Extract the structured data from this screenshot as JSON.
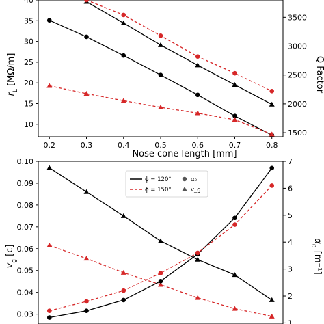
{
  "chart_data": [
    {
      "type": "line",
      "title": "",
      "xlabel": "Nose cone length [mm]",
      "ylabel": "r_L [MΩ/m]",
      "y2label": "Q Factor",
      "x": [
        0.2,
        0.3,
        0.4,
        0.5,
        0.6,
        0.7,
        0.8
      ],
      "xticks": [
        "0.2",
        "0.3",
        "0.4",
        "0.5",
        "0.6",
        "0.7",
        "0.8"
      ],
      "xlim": [
        0.17,
        0.83
      ],
      "ylim": [
        7,
        40
      ],
      "yticks": [
        "10",
        "15",
        "20",
        "25",
        "30",
        "35",
        "40"
      ],
      "y2lim": [
        1430,
        3800
      ],
      "y2ticks": [
        "1500",
        "2000",
        "2500",
        "3000",
        "3500"
      ],
      "series": [
        {
          "axis": "left",
          "color": "#000000",
          "style": "solid",
          "marker": "circle",
          "x": [
            0.2,
            0.3,
            0.4,
            0.5,
            0.6,
            0.7,
            0.8
          ],
          "values": [
            35.1,
            31.1,
            26.6,
            21.9,
            17.1,
            12.0,
            7.4
          ]
        },
        {
          "axis": "left",
          "color": "#d62728",
          "style": "dashed",
          "marker": "triangle",
          "x": [
            0.2,
            0.3,
            0.4,
            0.5,
            0.6,
            0.7,
            0.8
          ],
          "values": [
            19.3,
            17.4,
            15.7,
            14.1,
            12.7,
            11.1,
            7.6
          ]
        },
        {
          "axis": "right",
          "color": "#000000",
          "style": "solid",
          "marker": "triangle",
          "x": [
            0.3,
            0.4,
            0.5,
            0.6,
            0.7,
            0.8
          ],
          "values": [
            3770,
            3400,
            3020,
            2670,
            2330,
            1990
          ]
        },
        {
          "axis": "right",
          "color": "#d62728",
          "style": "dashed",
          "marker": "circle",
          "x": [
            0.3,
            0.4,
            0.5,
            0.6,
            0.7,
            0.8
          ],
          "values": [
            3800,
            3540,
            3180,
            2820,
            2530,
            2220
          ]
        }
      ]
    },
    {
      "type": "line",
      "title": "",
      "xlabel": "",
      "ylabel": "v_g [c]",
      "y2label": "α_0 [m⁻¹]",
      "x": [
        0.2,
        0.3,
        0.4,
        0.5,
        0.6,
        0.7,
        0.8
      ],
      "xlim": [
        0.17,
        0.83
      ],
      "ylim": [
        0.0255,
        0.1
      ],
      "yticks": [
        "0.03",
        "0.04",
        "0.05",
        "0.06",
        "0.07",
        "0.08",
        "0.09",
        "0.10"
      ],
      "y2lim": [
        0.96,
        7
      ],
      "y2ticks": [
        "1",
        "2",
        "3",
        "4",
        "5",
        "6",
        "7"
      ],
      "legend": {
        "placement": "top-center",
        "lines": [
          "ϕ = 120°",
          "ϕ = 150°"
        ],
        "markers": [
          "α₀",
          "v_g"
        ]
      },
      "series": [
        {
          "axis": "left",
          "color": "#000000",
          "style": "solid",
          "marker": "triangle",
          "x": [
            0.2,
            0.3,
            0.4,
            0.5,
            0.6,
            0.7,
            0.8
          ],
          "values": [
            0.097,
            0.086,
            0.075,
            0.0635,
            0.055,
            0.048,
            0.0365
          ]
        },
        {
          "axis": "left",
          "color": "#d62728",
          "style": "dashed",
          "marker": "triangle",
          "x": [
            0.2,
            0.3,
            0.4,
            0.5,
            0.6,
            0.7,
            0.8
          ],
          "values": [
            0.0615,
            0.0555,
            0.049,
            0.0435,
            0.0375,
            0.0325,
            0.029
          ]
        },
        {
          "axis": "right",
          "color": "#000000",
          "style": "solid",
          "marker": "circle",
          "x": [
            0.2,
            0.3,
            0.4,
            0.5,
            0.6,
            0.7,
            0.8
          ],
          "values": [
            1.2,
            1.45,
            1.85,
            2.55,
            3.55,
            4.9,
            6.75
          ]
        },
        {
          "axis": "right",
          "color": "#d62728",
          "style": "dashed",
          "marker": "circle",
          "x": [
            0.2,
            0.3,
            0.4,
            0.5,
            0.6,
            0.7,
            0.8
          ],
          "values": [
            1.45,
            1.8,
            2.2,
            2.85,
            3.6,
            4.65,
            6.1
          ]
        }
      ]
    }
  ]
}
